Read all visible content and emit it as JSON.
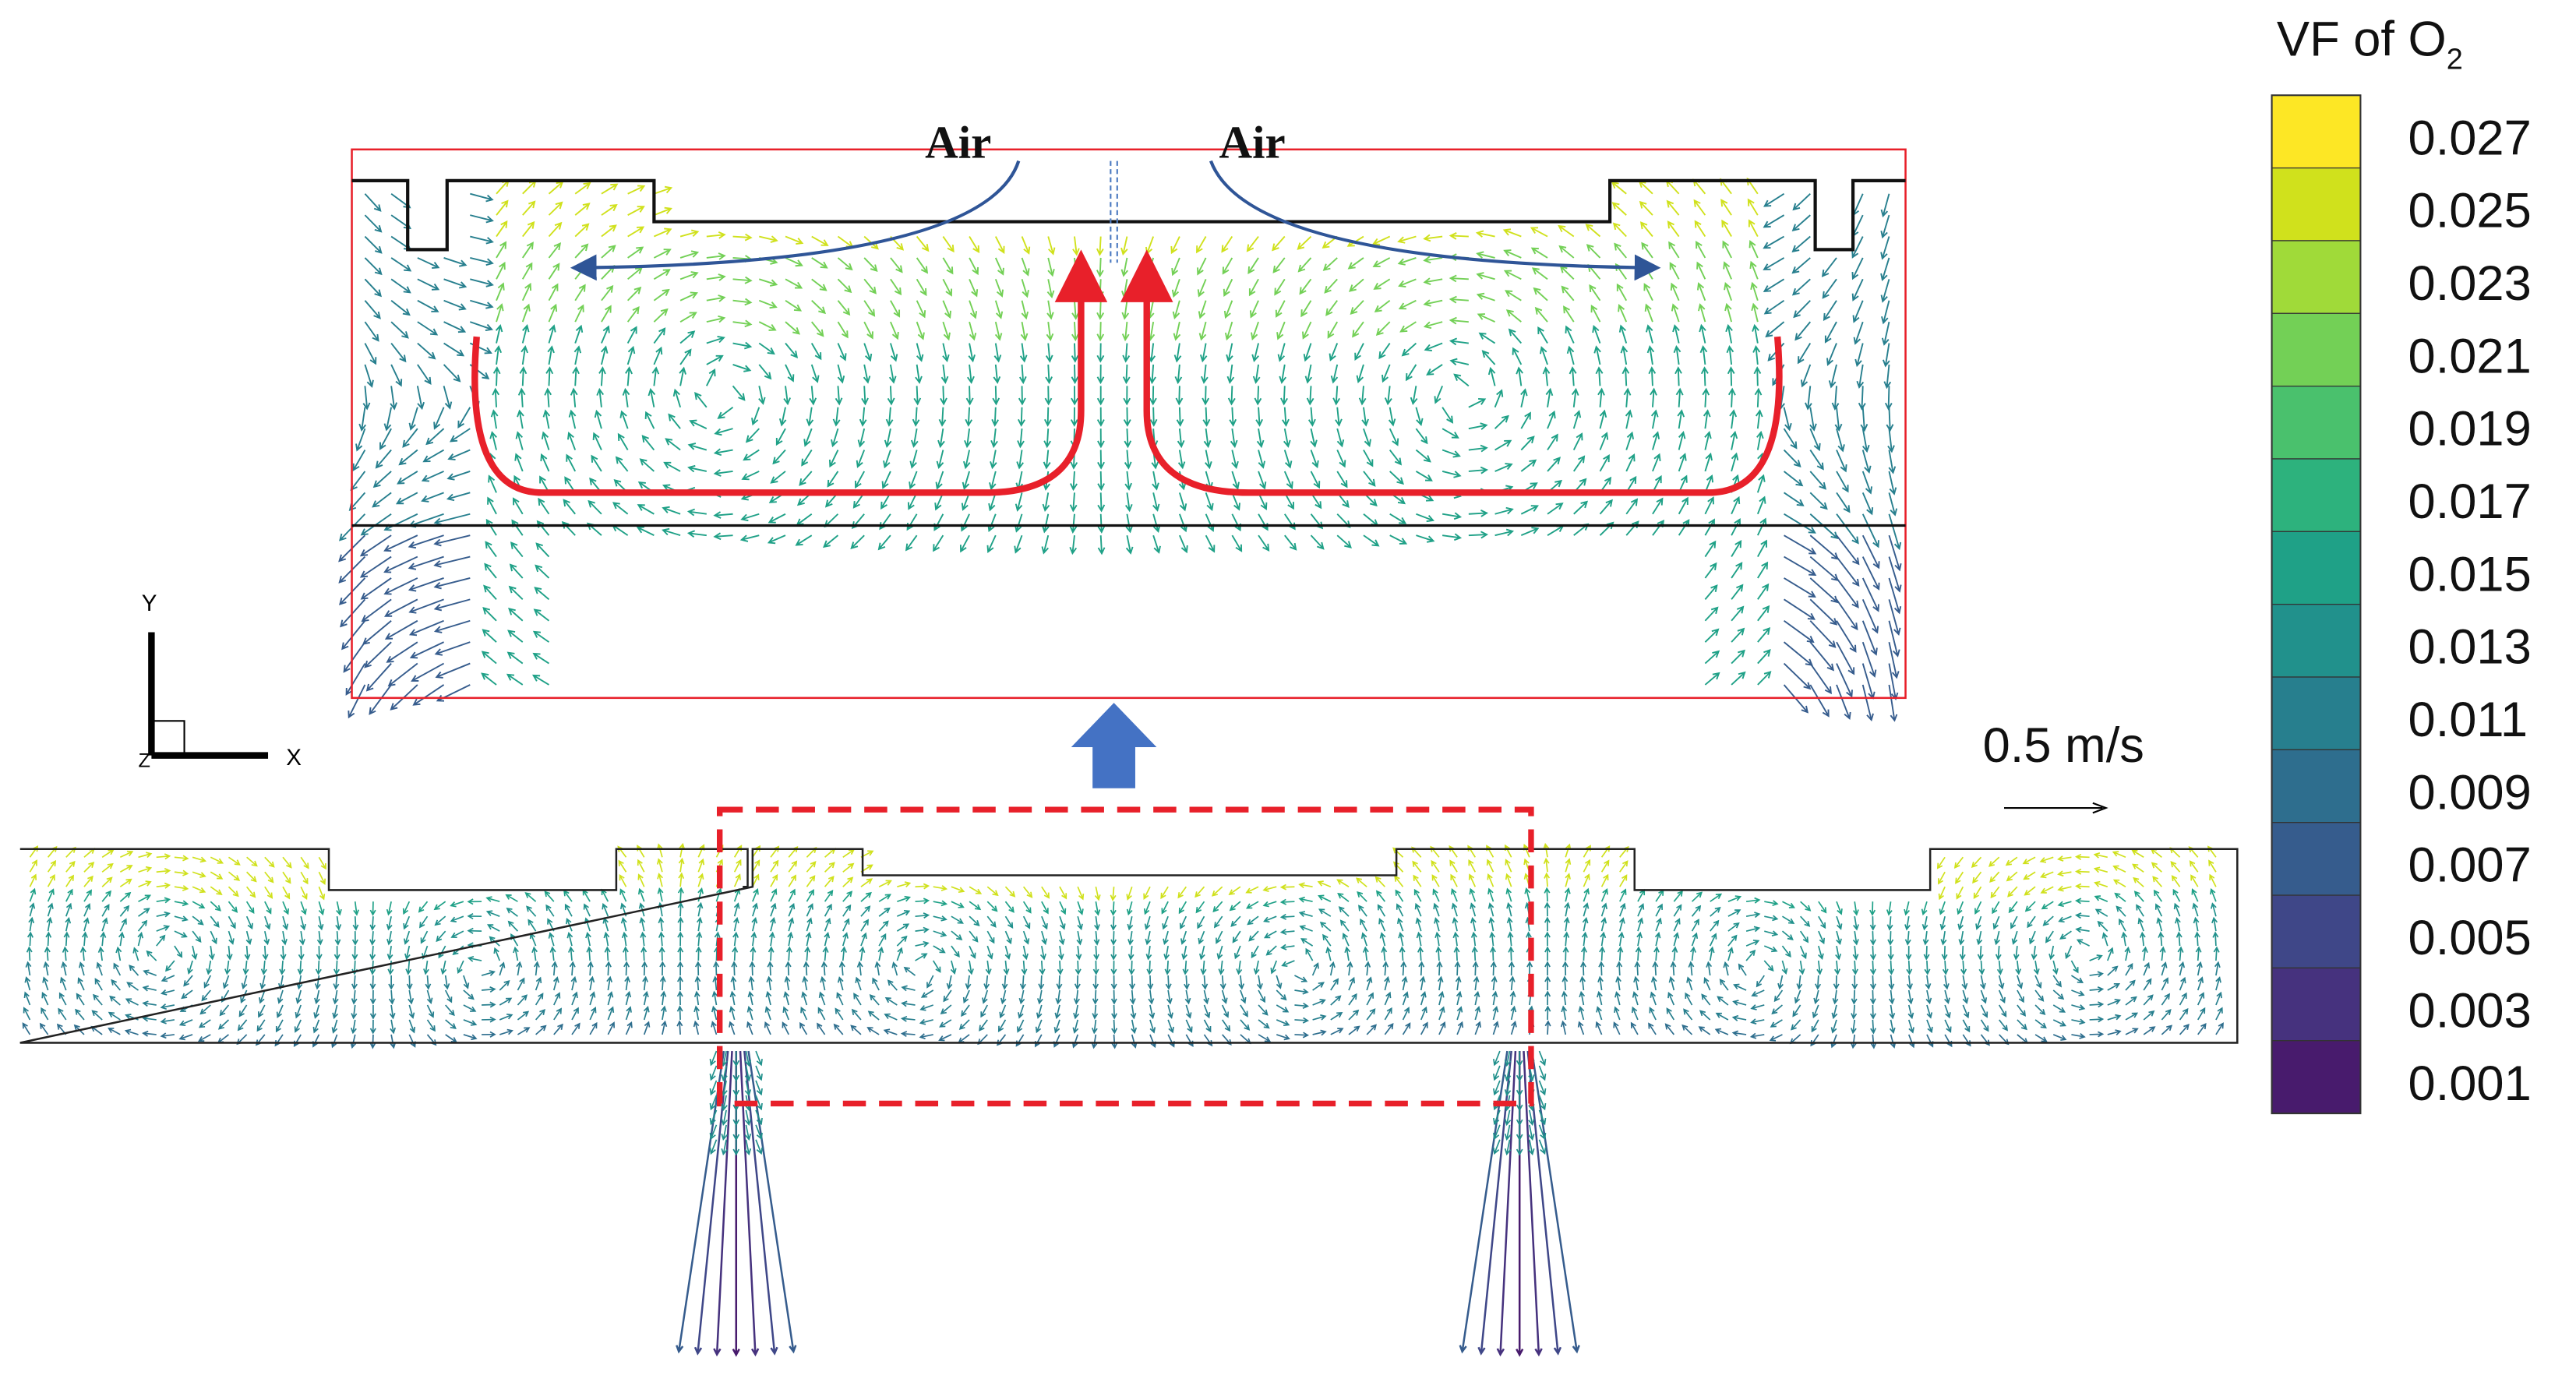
{
  "legend": {
    "title": "VF of O",
    "subscript": "2",
    "labels": [
      "0.027",
      "0.025",
      "0.023",
      "0.021",
      "0.019",
      "0.017",
      "0.015",
      "0.013",
      "0.011",
      "0.009",
      "0.007",
      "0.005",
      "0.003",
      "0.001"
    ]
  },
  "zoom": {
    "labels": [
      "Air",
      "Air"
    ]
  },
  "scale": {
    "label": "0.5 m/s"
  },
  "axes": {
    "y": "Y",
    "x": "X",
    "z": "Z"
  }
}
